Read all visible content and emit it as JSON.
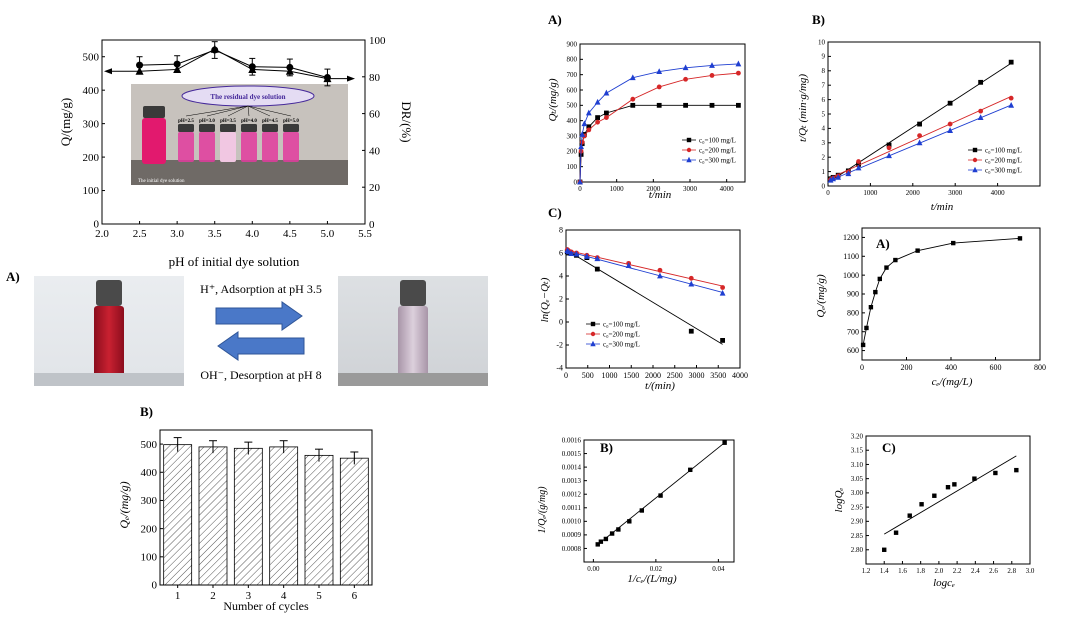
{
  "figure": {
    "colors": {
      "black": "#000000",
      "red": "#d62728",
      "blue": "#1f3fd1",
      "arrow": "#4a78c8",
      "solution": "#c2142a",
      "pink": "#e23b9e"
    }
  },
  "chart_data": [
    {
      "id": "ph-effect",
      "type": "line",
      "title": "",
      "xlabel": "pH of initial dye solution",
      "ylabel": "Q/(mg/g)",
      "y2label": "DR/(%)",
      "xlim": [
        2.0,
        5.5
      ],
      "ylim": [
        0,
        550
      ],
      "y2lim": [
        0,
        100
      ],
      "xticks": [
        "2.0",
        "2.5",
        "3.0",
        "3.5",
        "4.0",
        "4.5",
        "5.0",
        "5.5"
      ],
      "yticks": [
        "0",
        "100",
        "200",
        "300",
        "400",
        "500"
      ],
      "y2ticks": [
        "0",
        "20",
        "40",
        "60",
        "80",
        "100"
      ],
      "series": [
        {
          "name": "Q",
          "marker": "circle",
          "x": [
            2.5,
            3.0,
            3.5,
            4.0,
            4.5,
            5.0
          ],
          "y": [
            475,
            478,
            520,
            470,
            468,
            438
          ],
          "err": [
            25,
            25,
            25,
            25,
            25,
            25
          ]
        },
        {
          "name": "DR",
          "marker": "triangle",
          "x": [
            2.5,
            3.0,
            3.5,
            4.0,
            4.5,
            5.0
          ],
          "y": [
            83,
            84,
            95,
            84,
            83,
            79
          ]
        }
      ],
      "inset": {
        "title": "The residual dye solution",
        "labels": [
          "pH=2.5",
          "pH=3.0",
          "pH=3.5",
          "pH=4.0",
          "pH=4.5",
          "pH=5.0"
        ],
        "initial_label": "The initial dye solution"
      }
    },
    {
      "id": "adsorption-desorption",
      "type": "diagram",
      "panel_label": "A)",
      "top_text": "H⁺, Adsorption at pH 3.5",
      "bottom_text": "OH⁻, Desorption at pH 8"
    },
    {
      "id": "cycles",
      "type": "bar",
      "panel_label": "B)",
      "categories": [
        "1",
        "2",
        "3",
        "4",
        "5",
        "6"
      ],
      "values": [
        498,
        490,
        485,
        490,
        460,
        450
      ],
      "err": [
        25,
        22,
        22,
        22,
        22,
        22
      ],
      "xlabel": "Number of cycles",
      "ylabel": "Qₑ/(mg/g)",
      "ylim": [
        0,
        550
      ],
      "yticks": [
        "0",
        "100",
        "200",
        "300",
        "400",
        "500"
      ]
    },
    {
      "id": "kinetics",
      "type": "line",
      "panel_label": "A)",
      "xlabel": "t/min",
      "ylabel": "Qₜ/(mg/g)",
      "xlim": [
        0,
        4500
      ],
      "ylim": [
        0,
        900
      ],
      "xticks": [
        "0",
        "1000",
        "2000",
        "3000",
        "4000"
      ],
      "yticks": [
        "0",
        "100",
        "200",
        "300",
        "400",
        "500",
        "600",
        "700",
        "800",
        "900"
      ],
      "series": [
        {
          "name": "c₀=100 mg/L",
          "marker": "square",
          "color": "black",
          "x": [
            0,
            30,
            60,
            120,
            240,
            480,
            720,
            1440,
            2160,
            2880,
            3600,
            4320
          ],
          "y": [
            0,
            180,
            250,
            310,
            360,
            420,
            450,
            500,
            500,
            500,
            500,
            500
          ]
        },
        {
          "name": "c₀=200 mg/L",
          "marker": "circle",
          "color": "red",
          "x": [
            0,
            30,
            60,
            120,
            240,
            480,
            720,
            1440,
            2160,
            2880,
            3600,
            4320
          ],
          "y": [
            0,
            200,
            260,
            300,
            340,
            390,
            420,
            540,
            620,
            670,
            695,
            710
          ]
        },
        {
          "name": "c₀=300 mg/L",
          "marker": "triangle",
          "color": "blue",
          "x": [
            0,
            30,
            60,
            120,
            240,
            480,
            720,
            1440,
            2160,
            2880,
            3600,
            4320
          ],
          "y": [
            0,
            230,
            310,
            380,
            450,
            520,
            580,
            680,
            720,
            745,
            760,
            770
          ]
        }
      ]
    },
    {
      "id": "pseudo-second-order",
      "type": "scatter",
      "panel_label": "B)",
      "xlabel": "t/min",
      "ylabel": "t/Qₜ (min·g/mg)",
      "xlim": [
        0,
        5000
      ],
      "ylim": [
        0,
        10
      ],
      "xticks": [
        "0",
        "1000",
        "2000",
        "3000",
        "4000"
      ],
      "yticks": [
        "0",
        "1",
        "2",
        "3",
        "4",
        "5",
        "6",
        "7",
        "8",
        "9",
        "10"
      ],
      "series": [
        {
          "name": "c₀=100 mg/L",
          "marker": "square",
          "color": "black",
          "x": [
            60,
            120,
            240,
            480,
            720,
            1440,
            2160,
            2880,
            3600,
            4320
          ],
          "y": [
            0.5,
            0.6,
            0.75,
            1.05,
            1.5,
            2.85,
            4.3,
            5.75,
            7.2,
            8.6
          ]
        },
        {
          "name": "c₀=200 mg/L",
          "marker": "circle",
          "color": "red",
          "x": [
            60,
            120,
            240,
            480,
            720,
            1440,
            2160,
            2880,
            3600,
            4320
          ],
          "y": [
            0.45,
            0.55,
            0.7,
            0.95,
            1.7,
            2.65,
            3.5,
            4.3,
            5.2,
            6.1
          ]
        },
        {
          "name": "c₀=300 mg/L",
          "marker": "triangle",
          "color": "blue",
          "x": [
            60,
            120,
            240,
            480,
            720,
            1440,
            2160,
            2880,
            3600,
            4320
          ],
          "y": [
            0.4,
            0.5,
            0.6,
            0.85,
            1.25,
            2.1,
            3.0,
            3.85,
            4.75,
            5.6
          ]
        }
      ]
    },
    {
      "id": "pseudo-first-order",
      "type": "scatter",
      "panel_label": "C)",
      "xlabel": "t/(min)",
      "ylabel": "ln(Qₑ−Qₜ)",
      "xlim": [
        0,
        4000
      ],
      "ylim": [
        -4,
        8
      ],
      "xticks": [
        "0",
        "500",
        "1000",
        "1500",
        "2000",
        "2500",
        "3000",
        "3500",
        "4000"
      ],
      "yticks": [
        "-4",
        "-2",
        "0",
        "2",
        "4",
        "6",
        "8"
      ],
      "series": [
        {
          "name": "c₀=100 mg/L",
          "marker": "square",
          "color": "black",
          "x": [
            30,
            60,
            120,
            240,
            480,
            720,
            2880,
            3600
          ],
          "y": [
            6.1,
            6.0,
            5.95,
            5.8,
            5.6,
            4.6,
            -0.8,
            -1.6
          ]
        },
        {
          "name": "c₀=200 mg/L",
          "marker": "circle",
          "color": "red",
          "x": [
            30,
            60,
            120,
            240,
            480,
            720,
            1440,
            2160,
            2880,
            3600
          ],
          "y": [
            6.3,
            6.2,
            6.1,
            6.0,
            5.8,
            5.6,
            5.1,
            4.5,
            3.8,
            3.0
          ]
        },
        {
          "name": "c₀=300 mg/L",
          "marker": "triangle",
          "color": "blue",
          "x": [
            30,
            60,
            120,
            240,
            480,
            720,
            1440,
            2160,
            2880,
            3600
          ],
          "y": [
            6.2,
            6.1,
            5.95,
            5.9,
            5.7,
            5.5,
            4.9,
            4.0,
            3.3,
            2.5
          ]
        }
      ]
    },
    {
      "id": "isotherm",
      "type": "scatter",
      "panel_label": "A)",
      "xlabel": "cₑ/(mg/L)",
      "ylabel": "Qₑ/(mg/g)",
      "xlim": [
        0,
        800
      ],
      "ylim": [
        550,
        1250
      ],
      "xticks": [
        "0",
        "200",
        "400",
        "600",
        "800"
      ],
      "yticks": [
        "600",
        "700",
        "800",
        "900",
        "1000",
        "1100",
        "1200"
      ],
      "x": [
        5,
        20,
        40,
        60,
        80,
        110,
        150,
        250,
        410,
        710
      ],
      "y": [
        630,
        720,
        830,
        910,
        980,
        1040,
        1080,
        1130,
        1170,
        1195
      ]
    },
    {
      "id": "langmuir",
      "type": "scatter",
      "panel_label": "B)",
      "xlabel": "1/cₑ/(L/mg)",
      "ylabel": "1/Qₑ/(g/mg)",
      "xlim": [
        -0.003,
        0.045
      ],
      "ylim": [
        0.0007,
        0.0016
      ],
      "xticks": [
        "0.00",
        "0.02",
        "0.04"
      ],
      "yticks": [
        "0.0008",
        "0.0009",
        "0.0010",
        "0.0011",
        "0.0012",
        "0.0013",
        "0.0014",
        "0.0015",
        "0.0016"
      ],
      "x": [
        0.0014,
        0.0024,
        0.004,
        0.006,
        0.008,
        0.0115,
        0.0155,
        0.0215,
        0.031,
        0.042
      ],
      "y": [
        0.00083,
        0.00085,
        0.00087,
        0.00091,
        0.00094,
        0.001,
        0.00108,
        0.00119,
        0.00138,
        0.00158
      ],
      "fit": [
        [
          0.0014,
          0.000828
        ],
        [
          0.042,
          0.00158
        ]
      ]
    },
    {
      "id": "freundlich",
      "type": "scatter",
      "panel_label": "C)",
      "xlabel": "logcₑ",
      "ylabel": "logQₑ",
      "xlim": [
        1.2,
        3.0
      ],
      "ylim": [
        2.75,
        3.2
      ],
      "xticks": [
        "1.2",
        "1.4",
        "1.6",
        "1.8",
        "2.0",
        "2.2",
        "2.4",
        "2.6",
        "2.8",
        "3.0"
      ],
      "yticks": [
        "2.80",
        "2.85",
        "2.90",
        "2.95",
        "3.00",
        "3.05",
        "3.10",
        "3.15",
        "3.20"
      ],
      "x": [
        1.4,
        1.53,
        1.68,
        1.81,
        1.95,
        2.1,
        2.17,
        2.39,
        2.62,
        2.85
      ],
      "y": [
        2.8,
        2.86,
        2.92,
        2.96,
        2.99,
        3.02,
        3.03,
        3.05,
        3.07,
        3.08
      ],
      "fit": [
        [
          1.4,
          2.855
        ],
        [
          2.85,
          3.13
        ]
      ]
    }
  ]
}
